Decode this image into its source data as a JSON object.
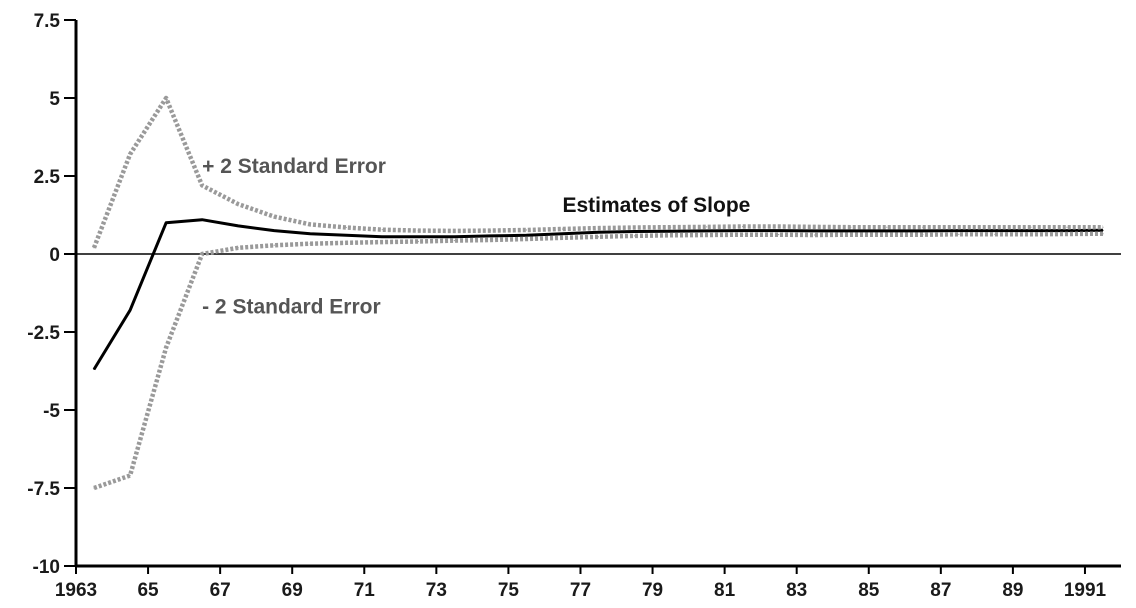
{
  "chart_data": {
    "type": "line",
    "title": "",
    "xlabel": "",
    "ylabel": "",
    "xlim": [
      1963,
      1992
    ],
    "ylim": [
      -10,
      7.5
    ],
    "x_ticks": [
      1963,
      1965,
      1967,
      1969,
      1971,
      1973,
      1975,
      1977,
      1979,
      1981,
      1983,
      1985,
      1987,
      1989,
      1991
    ],
    "x_tick_labels": [
      "1963",
      "65",
      "67",
      "69",
      "71",
      "73",
      "75",
      "77",
      "79",
      "81",
      "83",
      "85",
      "87",
      "89",
      "1991"
    ],
    "y_ticks": [
      7.5,
      5,
      2.5,
      0,
      -2.5,
      -5,
      -7.5,
      -10
    ],
    "y_tick_labels": [
      "7.5",
      "5",
      "2.5",
      "0",
      "-2.5",
      "-5",
      "-7.5",
      "-10"
    ],
    "zero_line": true,
    "grid": false,
    "x": [
      1963.5,
      1964.5,
      1965.5,
      1966.5,
      1967.5,
      1968.5,
      1969.5,
      1970.5,
      1971.5,
      1972.5,
      1973.5,
      1974.5,
      1975.5,
      1976.5,
      1977.5,
      1978.5,
      1979.5,
      1980.5,
      1981.5,
      1982.5,
      1983.5,
      1984.5,
      1985.5,
      1986.5,
      1987.5,
      1988.5,
      1989.5,
      1990.5,
      1991.5
    ],
    "series": [
      {
        "label": "Estimates of Slope",
        "style": "solid",
        "color": "#000000",
        "values": [
          -3.7,
          -1.8,
          1.0,
          1.1,
          0.9,
          0.75,
          0.65,
          0.6,
          0.55,
          0.55,
          0.55,
          0.58,
          0.6,
          0.65,
          0.7,
          0.72,
          0.73,
          0.74,
          0.75,
          0.75,
          0.74,
          0.74,
          0.74,
          0.74,
          0.75,
          0.75,
          0.75,
          0.75,
          0.76
        ]
      },
      {
        "label": "+ 2 Standard Error",
        "style": "dotted",
        "color": "#9a9a9a",
        "values": [
          0.2,
          3.2,
          5.0,
          2.2,
          1.6,
          1.2,
          0.95,
          0.85,
          0.78,
          0.75,
          0.74,
          0.75,
          0.77,
          0.8,
          0.83,
          0.85,
          0.86,
          0.87,
          0.88,
          0.88,
          0.87,
          0.86,
          0.86,
          0.86,
          0.86,
          0.86,
          0.86,
          0.86,
          0.86
        ]
      },
      {
        "label": "- 2 Standard Error",
        "style": "dotted",
        "color": "#9a9a9a",
        "values": [
          -7.5,
          -7.1,
          -3.0,
          0.0,
          0.2,
          0.28,
          0.33,
          0.36,
          0.38,
          0.4,
          0.43,
          0.45,
          0.48,
          0.52,
          0.55,
          0.58,
          0.6,
          0.61,
          0.62,
          0.62,
          0.61,
          0.62,
          0.62,
          0.62,
          0.63,
          0.63,
          0.63,
          0.64,
          0.65
        ]
      }
    ],
    "annotations": [
      {
        "text": "+ 2 Standard Error",
        "x": 1966.5,
        "y": 2.6,
        "color": "#555555"
      },
      {
        "text": "- 2 Standard Error",
        "x": 1966.5,
        "y": -1.9,
        "color": "#555555"
      },
      {
        "text": "Estimates of Slope",
        "x": 1976.5,
        "y": 1.35,
        "color": "#111111"
      }
    ]
  }
}
